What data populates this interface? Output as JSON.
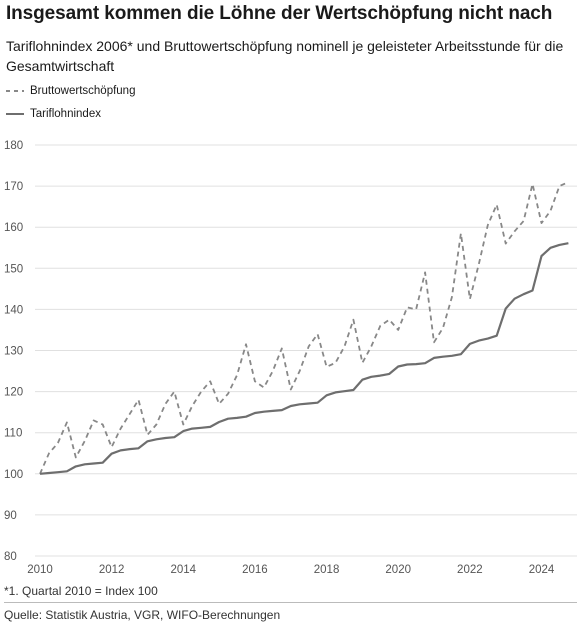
{
  "header": {
    "title": "Insgesamt kommen die Löhne der Wertschöpfung nicht nach",
    "subtitle": "Tariflohnindex 2006* und Bruttowertschöpfung nominell je geleisteter Arbeitsstunde für die Gesamtwirtschaft"
  },
  "legend": [
    {
      "label": "Bruttowertschöpfung",
      "style": "dashed"
    },
    {
      "label": "Tariflohnindex",
      "style": "solid"
    }
  ],
  "colors": {
    "bruttowertschoepfung": "#888888",
    "tariflohnindex": "#6e6e6e",
    "grid": "#e0e0e0"
  },
  "footer": {
    "note": "*1. Quartal 2010 = Index 100",
    "source": "Quelle: Statistik Austria, VGR, WIFO-Berechnungen"
  },
  "chart_data": {
    "type": "line",
    "title": "Insgesamt kommen die Löhne der Wertschöpfung nicht nach",
    "subtitle": "Tariflohnindex 2006* und Bruttowertschöpfung nominell je geleisteter Arbeitsstunde für die Gesamtwirtschaft",
    "xlabel": "",
    "ylabel": "",
    "xlim": [
      2010,
      2025
    ],
    "ylim": [
      80,
      180
    ],
    "xticks": [
      "2010",
      "2012",
      "2014",
      "2016",
      "2018",
      "2020",
      "2022",
      "2024"
    ],
    "yticks": [
      80,
      90,
      100,
      110,
      120,
      130,
      140,
      150,
      160,
      170,
      180
    ],
    "grid": true,
    "legend_position": "top-left",
    "x": [
      "2010 Q1",
      "2010 Q2",
      "2010 Q3",
      "2010 Q4",
      "2011 Q1",
      "2011 Q2",
      "2011 Q3",
      "2011 Q4",
      "2012 Q1",
      "2012 Q2",
      "2012 Q3",
      "2012 Q4",
      "2013 Q1",
      "2013 Q2",
      "2013 Q3",
      "2013 Q4",
      "2014 Q1",
      "2014 Q2",
      "2014 Q3",
      "2014 Q4",
      "2015 Q1",
      "2015 Q2",
      "2015 Q3",
      "2015 Q4",
      "2016 Q1",
      "2016 Q2",
      "2016 Q3",
      "2016 Q4",
      "2017 Q1",
      "2017 Q2",
      "2017 Q3",
      "2017 Q4",
      "2018 Q1",
      "2018 Q2",
      "2018 Q3",
      "2018 Q4",
      "2019 Q1",
      "2019 Q2",
      "2019 Q3",
      "2019 Q4",
      "2020 Q1",
      "2020 Q2",
      "2020 Q3",
      "2020 Q4",
      "2021 Q1",
      "2021 Q2",
      "2021 Q3",
      "2021 Q4",
      "2022 Q1",
      "2022 Q2",
      "2022 Q3",
      "2022 Q4",
      "2023 Q1",
      "2023 Q2",
      "2023 Q3",
      "2023 Q4",
      "2024 Q1",
      "2024 Q2",
      "2024 Q3",
      "2024 Q4"
    ],
    "series": [
      {
        "name": "Bruttowertschöpfung",
        "style": "dashed",
        "values": [
          100,
          105,
          107.5,
          112.5,
          104,
          108,
          113,
          112,
          106.5,
          111,
          114.5,
          118,
          109.5,
          112,
          117,
          120,
          112,
          116.5,
          120,
          122.5,
          117,
          119.5,
          124,
          131.5,
          122.5,
          121,
          125,
          130.5,
          120.5,
          125,
          131,
          134,
          126,
          127,
          131,
          137.5,
          127,
          131,
          136,
          137.5,
          135,
          140.5,
          140,
          149,
          132,
          135.5,
          143,
          158.5,
          142.5,
          151,
          160.5,
          165.5,
          156,
          159,
          161.5,
          170.5,
          161,
          164,
          170,
          171
        ]
      },
      {
        "name": "Tariflohnindex",
        "style": "solid",
        "values": [
          100,
          100.2,
          100.4,
          100.6,
          101.8,
          102.3,
          102.5,
          102.7,
          104.9,
          105.7,
          106.0,
          106.2,
          107.9,
          108.4,
          108.7,
          108.9,
          110.4,
          111.0,
          111.2,
          111.4,
          112.6,
          113.4,
          113.6,
          113.9,
          114.8,
          115.1,
          115.3,
          115.5,
          116.5,
          116.9,
          117.1,
          117.3,
          119.1,
          119.8,
          120.1,
          120.4,
          122.9,
          123.6,
          123.9,
          124.3,
          126.1,
          126.6,
          126.7,
          126.9,
          128.2,
          128.5,
          128.7,
          129.1,
          131.6,
          132.4,
          132.9,
          133.6,
          140.2,
          142.6,
          143.7,
          144.6,
          153.0,
          155.0,
          155.7,
          156.1
        ]
      }
    ]
  }
}
